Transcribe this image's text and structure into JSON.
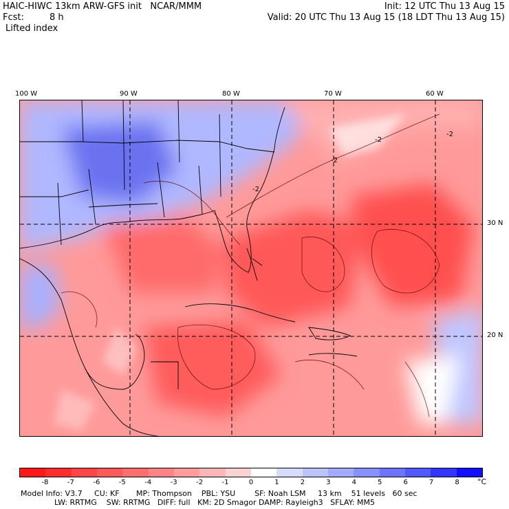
{
  "header": {
    "title": "HAIC-HIWC 13km ARW-GFS init   NCAR/MMM",
    "init": "Init: 12 UTC Thu 13 Aug 15",
    "fcst_label": "Fcst:",
    "fcst_value": "8 h",
    "valid": "Valid: 20 UTC Thu 13 Aug 15 (18 LDT Thu 13 Aug 15)",
    "field": "Lifted index"
  },
  "map": {
    "longitude_labels": [
      "100 W",
      "90 W",
      "80 W",
      "70 W",
      "60 W"
    ],
    "latitude_labels": [
      "30 N",
      "20 N"
    ],
    "contour_labels": [
      "-2",
      "-2",
      "-2",
      "-2"
    ]
  },
  "colorbar": {
    "labels": [
      "-8",
      "-7",
      "-6",
      "-5",
      "-4",
      "-3",
      "-2",
      "-1",
      "0",
      "1",
      "2",
      "3",
      "4",
      "5",
      "6",
      "7",
      "8"
    ],
    "unit": "°C",
    "colors": [
      "#ff1a1a",
      "#ff2e2e",
      "#ff4545",
      "#ff5a5a",
      "#ff6f6f",
      "#ff8585",
      "#ff9d9d",
      "#ffb6b6",
      "#ffd2d2",
      "#ffffff",
      "#d6dcff",
      "#bcc4ff",
      "#a3abff",
      "#8890ff",
      "#6d74ff",
      "#5058ff",
      "#3038ff",
      "#1010ff"
    ]
  },
  "footer": {
    "line1": "Model Info: V3.7     CU: KF       MP: Thompson    PBL: YSU        SF: Noah LSM     13 km    51 levels   60 sec",
    "line2": "              LW: RRTMG    SW: RRTMG   DIFF: full   KM: 2D Smagor DAMP: Rayleigh3   SFLAY: MM5"
  }
}
